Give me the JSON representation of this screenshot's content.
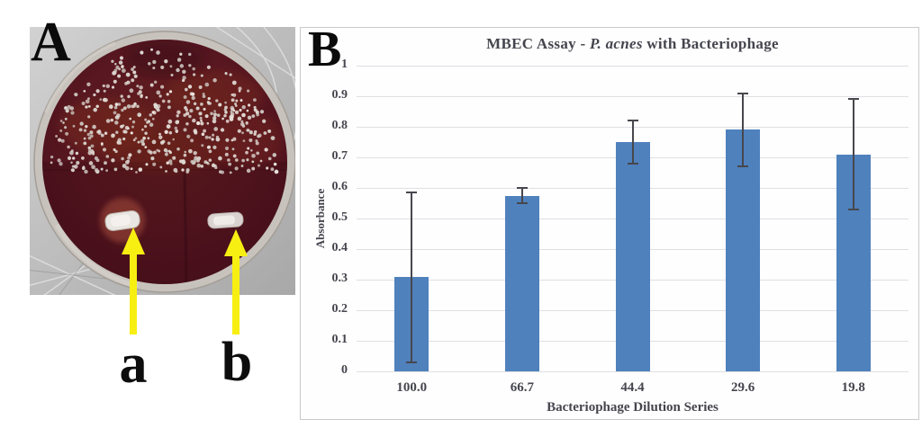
{
  "figure": {
    "panel_a": {
      "label": "A",
      "description_icons": {
        "dish": "petri-dish-photo",
        "arrows": "yellow-pointer-arrows"
      },
      "annotations": [
        {
          "label": "a"
        },
        {
          "label": "b"
        }
      ]
    },
    "panel_b": {
      "label": "B"
    }
  },
  "chart_data": {
    "type": "bar",
    "title": "MBEC Assay - P. acnes with Bacteriophage",
    "title_parts": {
      "prefix": "MBEC Assay - ",
      "italic": "P. acnes",
      "suffix": " with Bacteriophage"
    },
    "categories": [
      "100.0",
      "66.7",
      "44.4",
      "29.6",
      "19.8"
    ],
    "values": [
      0.31,
      0.575,
      0.75,
      0.79,
      0.71
    ],
    "error_top": [
      0.585,
      0.6,
      0.82,
      0.91,
      0.89
    ],
    "error_bottom": [
      0.03,
      0.55,
      0.68,
      0.67,
      0.53
    ],
    "xlabel": "Bacteriophage Dilution Series",
    "ylabel": "Absorbance",
    "ylim": [
      0,
      1
    ],
    "ytick_step": 0.1,
    "yticks": [
      "1",
      "0.9",
      "0.8",
      "0.7",
      "0.6",
      "0.5",
      "0.4",
      "0.3",
      "0.2",
      "0.1",
      "0"
    ],
    "grid": true,
    "legend": false,
    "colors": {
      "bar": "#4f81bd",
      "grid": "#dfdfe5",
      "error": "#47474d",
      "text": "#45454e",
      "border": "#c9c9cd"
    }
  }
}
